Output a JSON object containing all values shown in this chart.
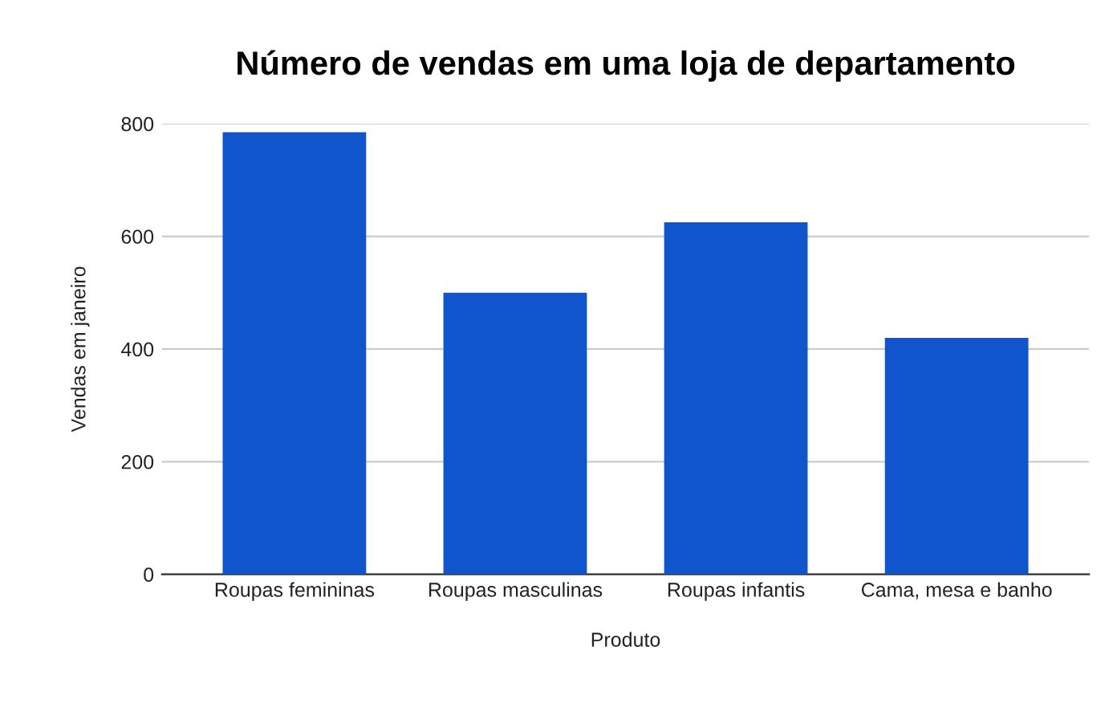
{
  "chart_data": {
    "type": "bar",
    "title": "Número de vendas em uma loja de departamento",
    "xlabel": "Produto",
    "ylabel": "Vendas em janeiro",
    "categories": [
      "Roupas femininas",
      "Roupas masculinas",
      "Roupas infantis",
      "Cama, mesa e banho"
    ],
    "values": [
      785,
      500,
      625,
      420
    ],
    "color": "#1155cc",
    "ylim": [
      0,
      800
    ],
    "yticks": [
      0,
      200,
      400,
      600,
      800
    ],
    "grid": "y"
  }
}
